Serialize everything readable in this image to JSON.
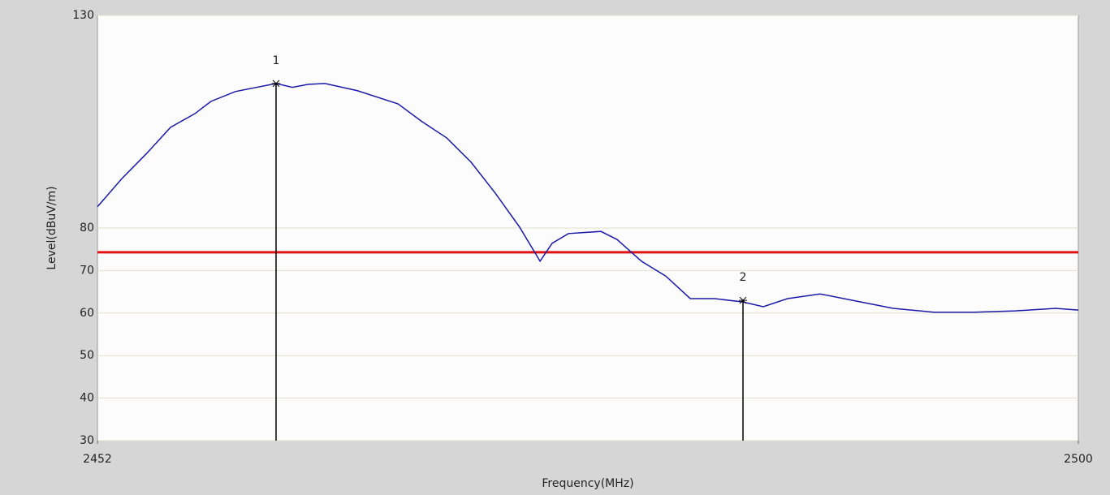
{
  "chart_data": {
    "type": "line",
    "xlabel": "Frequency(MHz)",
    "ylabel": "Level(dBuV/m)",
    "x": [
      2452.0,
      2453.19,
      2454.38,
      2455.58,
      2456.77,
      2457.56,
      2458.75,
      2460.74,
      2461.54,
      2462.33,
      2463.13,
      2464.72,
      2466.71,
      2467.89,
      2469.09,
      2470.28,
      2471.47,
      2472.66,
      2473.26,
      2473.66,
      2474.25,
      2475.05,
      2476.64,
      2477.43,
      2478.62,
      2479.81,
      2481.01,
      2482.2,
      2483.59,
      2484.58,
      2485.77,
      2487.36,
      2488.95,
      2490.94,
      2492.93,
      2494.91,
      2496.9,
      2498.89,
      2500.0
    ],
    "series": [
      {
        "color": "#1a1aa8",
        "values": [
          85,
          91.6,
          97.4,
          103.7,
          106.9,
          109.8,
          112.1,
          114,
          113.1,
          113.8,
          114,
          112.3,
          109.2,
          105,
          101.2,
          95.5,
          88.2,
          80.2,
          75.4,
          72.2,
          76.4,
          78.7,
          79.2,
          77.3,
          72.2,
          68.7,
          63.4,
          63.4,
          62.6,
          61.5,
          63.4,
          64.5,
          63,
          61.1,
          60.2,
          60.2,
          60.5,
          61.1,
          60.7
        ]
      }
    ],
    "limit_line": {
      "value": 74.3,
      "color": "#e41010"
    },
    "markers": [
      {
        "label": "1",
        "x": 2460.74,
        "y": 114
      },
      {
        "label": "2",
        "x": 2483.59,
        "y": 63
      }
    ],
    "xlim": [
      2452,
      2500
    ],
    "xticks": [
      2452,
      2500
    ],
    "ylim": [
      30,
      130
    ],
    "yticks": [
      30,
      40,
      50,
      60,
      70,
      80,
      130
    ],
    "grid": true,
    "grid_color": "#e2e0c8"
  }
}
